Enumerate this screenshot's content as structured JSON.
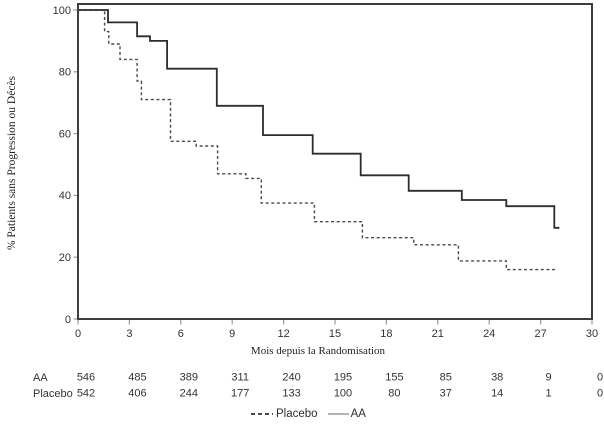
{
  "chart_data": {
    "type": "line",
    "subtype": "kaplan-meier-step",
    "title": "",
    "xlabel": "Mois depuis la Randomisation",
    "ylabel": "% Patients sans Progression ou Décès",
    "xlim": [
      0,
      30
    ],
    "ylim": [
      0,
      100
    ],
    "x_ticks": [
      0,
      3,
      6,
      9,
      12,
      15,
      18,
      21,
      24,
      27,
      30
    ],
    "y_ticks": [
      0,
      20,
      40,
      60,
      80,
      100
    ],
    "grid": false,
    "legend_position": "bottom-center",
    "series": [
      {
        "name": "Placebo",
        "line_style": "dashed",
        "color": "#4a4a4a",
        "steps": [
          [
            0,
            100
          ],
          [
            1.55,
            93
          ],
          [
            1.8,
            89
          ],
          [
            2.45,
            84
          ],
          [
            3.45,
            77
          ],
          [
            3.7,
            71
          ],
          [
            5.4,
            57.5
          ],
          [
            6.9,
            56
          ],
          [
            8.15,
            47
          ],
          [
            9.8,
            45.5
          ],
          [
            10.7,
            37.5
          ],
          [
            13.8,
            31.5
          ],
          [
            16.6,
            26.3
          ],
          [
            19.6,
            24
          ],
          [
            22.2,
            18.8
          ],
          [
            25.0,
            16
          ]
        ],
        "end_time": 27.9
      },
      {
        "name": "AA",
        "line_style": "solid",
        "color": "#2d2d2d",
        "steps": [
          [
            0,
            100
          ],
          [
            1.75,
            96
          ],
          [
            3.45,
            91.5
          ],
          [
            4.2,
            90
          ],
          [
            5.2,
            81
          ],
          [
            8.1,
            69
          ],
          [
            10.8,
            59.5
          ],
          [
            13.7,
            53.5
          ],
          [
            16.5,
            46.5
          ],
          [
            19.3,
            41.5
          ],
          [
            22.4,
            38.5
          ],
          [
            25.0,
            36.5
          ],
          [
            27.8,
            29.5
          ]
        ],
        "end_time": 28.1
      }
    ],
    "at_risk_table": {
      "time_points": [
        0,
        3,
        6,
        9,
        12,
        15,
        18,
        21,
        24,
        27,
        30
      ],
      "rows": [
        {
          "label": "AA",
          "counts": [
            546,
            485,
            389,
            311,
            240,
            195,
            155,
            85,
            38,
            9,
            0
          ]
        },
        {
          "label": "Placebo",
          "counts": [
            542,
            406,
            244,
            177,
            133,
            100,
            80,
            37,
            14,
            1,
            0
          ]
        }
      ]
    },
    "legend": [
      {
        "label": "Placebo",
        "style": "dashed"
      },
      {
        "label": "AA",
        "style": "solid"
      }
    ]
  },
  "style": {
    "curve_aa_color": "#2d2d2d",
    "curve_placebo_color": "#4a4a4a",
    "plot_border_color": "#3e3e3e",
    "tick_color": "#9b9b9b",
    "tick_label_color": "#333333",
    "table_text_color": "#333333",
    "legend_solid_sample_color": "#b3b3b3",
    "background": "#ffffff"
  }
}
